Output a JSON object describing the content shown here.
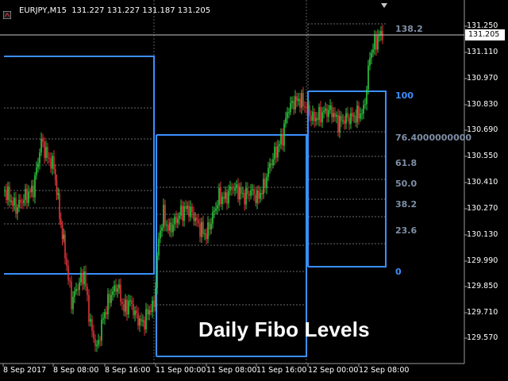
{
  "header": {
    "symbol": "EURJPY,M15",
    "ohlc": "131.227 131.227 131.187 131.205"
  },
  "overlay_title": "Daily Fibo Levels",
  "current_price": "131.205",
  "price_axis": [
    "131.250",
    "131.110",
    "130.970",
    "130.830",
    "130.690",
    "130.550",
    "130.410",
    "130.270",
    "130.130",
    "129.990",
    "129.850",
    "129.710",
    "129.570"
  ],
  "time_axis": [
    "8 Sep 2017",
    "8 Sep 08:00",
    "8 Sep 16:00",
    "11 Sep 00:00",
    "11 Sep 08:00",
    "11 Sep 16:00",
    "12 Sep 00:00",
    "12 Sep 08:00"
  ],
  "fib_levels": [
    {
      "label": "138.2",
      "color": "#7f8fa6"
    },
    {
      "label": "100",
      "color": "#3b8fff"
    },
    {
      "label": "76.4000000000",
      "color": "#7f8fa6"
    },
    {
      "label": "61.8",
      "color": "#7f8fa6"
    },
    {
      "label": "50.0",
      "color": "#7f8fa6"
    },
    {
      "label": "38.2",
      "color": "#7f8fa6"
    },
    {
      "label": "23.6",
      "color": "#7f8fa6"
    },
    {
      "label": "0",
      "color": "#3b8fff"
    }
  ],
  "colors": {
    "background": "#000000",
    "bull": "#2ecc40",
    "bear": "#e0353a",
    "box": "#3b8fff",
    "grid": "#5a5a5a",
    "axis_text": "#ffffff"
  }
}
